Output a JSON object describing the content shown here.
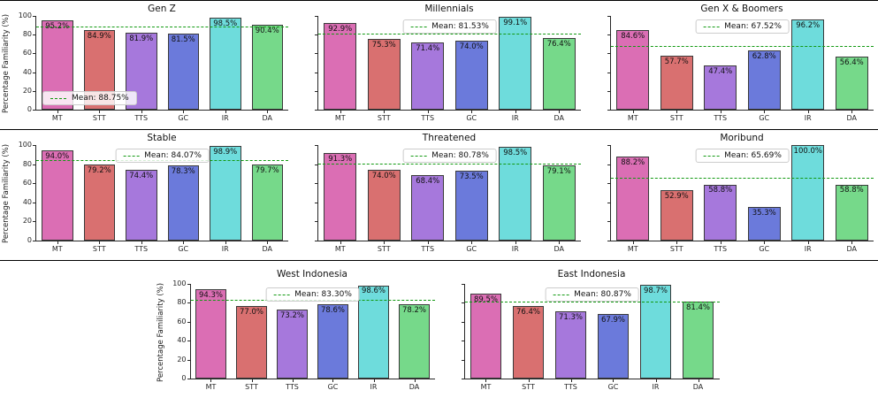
{
  "figure": {
    "ylabel": "Percentage Familiarity (%)",
    "yticks": [
      0,
      20,
      40,
      60,
      80,
      100
    ],
    "ylim": [
      0,
      100
    ],
    "categories": [
      "MT",
      "STT",
      "TTS",
      "GC",
      "IR",
      "DA"
    ],
    "bar_colors": [
      "#db6eb4",
      "#d97070",
      "#a678dc",
      "#6b7adb",
      "#6edcdc",
      "#76d98a"
    ],
    "bar_edge_color": "#3a3a3a",
    "mean_line_color": "#129a12",
    "axis_color": "#262626"
  },
  "layout": {
    "rows": [
      [
        0,
        1,
        2
      ],
      [
        3,
        4,
        5
      ],
      [
        6,
        7
      ]
    ]
  },
  "chart_data": [
    {
      "type": "bar",
      "title": "Gen Z",
      "categories": [
        "MT",
        "STT",
        "TTS",
        "GC",
        "IR",
        "DA"
      ],
      "values": [
        95.2,
        84.9,
        81.9,
        81.5,
        98.5,
        90.4
      ],
      "bar_labels": [
        "95.2%",
        "84.9%",
        "81.9%",
        "81.5%",
        "98.5%",
        "90.4%"
      ],
      "mean": 88.75,
      "legend_label": "Mean: 88.75%",
      "legend_position": "lower-left",
      "ylabel": "Percentage Familiarity (%)",
      "show_y_axis_labels": true,
      "ylim": [
        0,
        100
      ]
    },
    {
      "type": "bar",
      "title": "Millennials",
      "categories": [
        "MT",
        "STT",
        "TTS",
        "GC",
        "IR",
        "DA"
      ],
      "values": [
        92.9,
        75.3,
        71.4,
        74.0,
        99.1,
        76.4
      ],
      "bar_labels": [
        "92.9%",
        "75.3%",
        "71.4%",
        "74.0%",
        "99.1%",
        "76.4%"
      ],
      "mean": 81.53,
      "legend_label": "Mean: 81.53%",
      "legend_position": "upper-center",
      "ylabel": "",
      "show_y_axis_labels": false,
      "ylim": [
        0,
        100
      ]
    },
    {
      "type": "bar",
      "title": "Gen X & Boomers",
      "categories": [
        "MT",
        "STT",
        "TTS",
        "GC",
        "IR",
        "DA"
      ],
      "values": [
        84.6,
        57.7,
        47.4,
        62.8,
        96.2,
        56.4
      ],
      "bar_labels": [
        "84.6%",
        "57.7%",
        "47.4%",
        "62.8%",
        "96.2%",
        "56.4%"
      ],
      "mean": 67.52,
      "legend_label": "Mean: 67.52%",
      "legend_position": "upper-center",
      "ylabel": "",
      "show_y_axis_labels": false,
      "ylim": [
        0,
        100
      ]
    },
    {
      "type": "bar",
      "title": "Stable",
      "categories": [
        "MT",
        "STT",
        "TTS",
        "GC",
        "IR",
        "DA"
      ],
      "values": [
        94.0,
        79.2,
        74.4,
        78.3,
        98.9,
        79.7
      ],
      "bar_labels": [
        "94.0%",
        "79.2%",
        "74.4%",
        "78.3%",
        "98.9%",
        "79.7%"
      ],
      "mean": 84.07,
      "legend_label": "Mean: 84.07%",
      "legend_position": "upper-center",
      "ylabel": "Percentage Familiarity (%)",
      "show_y_axis_labels": true,
      "ylim": [
        0,
        100
      ]
    },
    {
      "type": "bar",
      "title": "Threatened",
      "categories": [
        "MT",
        "STT",
        "TTS",
        "GC",
        "IR",
        "DA"
      ],
      "values": [
        91.3,
        74.0,
        68.4,
        73.5,
        98.5,
        79.1
      ],
      "bar_labels": [
        "91.3%",
        "74.0%",
        "68.4%",
        "73.5%",
        "98.5%",
        "79.1%"
      ],
      "mean": 80.78,
      "legend_label": "Mean: 80.78%",
      "legend_position": "upper-center",
      "ylabel": "",
      "show_y_axis_labels": false,
      "ylim": [
        0,
        100
      ]
    },
    {
      "type": "bar",
      "title": "Moribund",
      "categories": [
        "MT",
        "STT",
        "TTS",
        "GC",
        "IR",
        "DA"
      ],
      "values": [
        88.2,
        52.9,
        58.8,
        35.3,
        100.0,
        58.8
      ],
      "bar_labels": [
        "88.2%",
        "52.9%",
        "58.8%",
        "35.3%",
        "100.0%",
        "58.8%"
      ],
      "mean": 65.69,
      "legend_label": "Mean: 65.69%",
      "legend_position": "upper-center",
      "ylabel": "",
      "show_y_axis_labels": false,
      "ylim": [
        0,
        100
      ]
    },
    {
      "type": "bar",
      "title": "West Indonesia",
      "categories": [
        "MT",
        "STT",
        "TTS",
        "GC",
        "IR",
        "DA"
      ],
      "values": [
        94.3,
        77.0,
        73.2,
        78.6,
        98.6,
        78.2
      ],
      "bar_labels": [
        "94.3%",
        "77.0%",
        "73.2%",
        "78.6%",
        "98.6%",
        "78.2%"
      ],
      "mean": 83.3,
      "legend_label": "Mean: 83.30%",
      "legend_position": "upper-center",
      "ylabel": "Percentage Familiarity (%)",
      "show_y_axis_labels": true,
      "ylim": [
        0,
        100
      ]
    },
    {
      "type": "bar",
      "title": "East Indonesia",
      "categories": [
        "MT",
        "STT",
        "TTS",
        "GC",
        "IR",
        "DA"
      ],
      "values": [
        89.5,
        76.4,
        71.3,
        67.9,
        98.7,
        81.4
      ],
      "bar_labels": [
        "89.5%",
        "76.4%",
        "71.3%",
        "67.9%",
        "98.7%",
        "81.4%"
      ],
      "mean": 80.87,
      "legend_label": "Mean: 80.87%",
      "legend_position": "upper-center",
      "ylabel": "",
      "show_y_axis_labels": false,
      "ylim": [
        0,
        100
      ]
    }
  ]
}
